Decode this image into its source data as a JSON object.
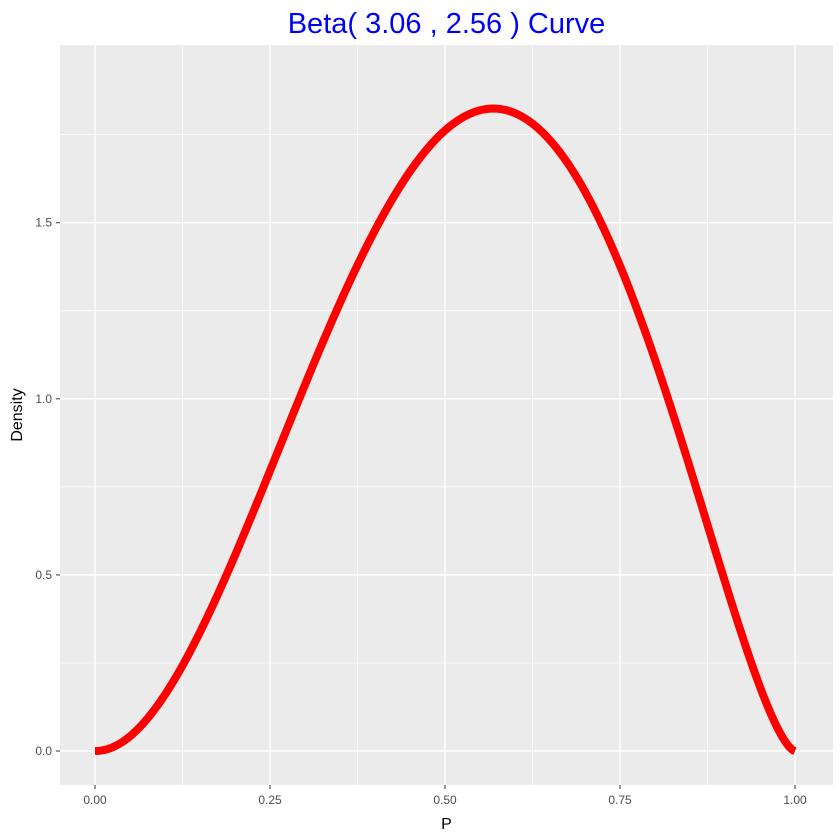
{
  "chart_data": {
    "type": "line",
    "title": "Beta( 3.06 , 2.56 ) Curve",
    "xlabel": "P",
    "ylabel": "Density",
    "distribution": "Beta",
    "alpha": 3.06,
    "beta": 2.56,
    "xlim": [
      0,
      1
    ],
    "ylim": [
      0,
      1.82
    ],
    "x_ticks": [
      {
        "value": 0.0,
        "label": "0.00"
      },
      {
        "value": 0.25,
        "label": "0.25"
      },
      {
        "value": 0.5,
        "label": "0.50"
      },
      {
        "value": 0.75,
        "label": "0.75"
      },
      {
        "value": 1.0,
        "label": "1.00"
      }
    ],
    "y_ticks": [
      {
        "value": 0.0,
        "label": "0.0"
      },
      {
        "value": 0.5,
        "label": "0.5"
      },
      {
        "value": 1.0,
        "label": "1.0"
      },
      {
        "value": 1.5,
        "label": "1.5"
      }
    ],
    "x": [
      0.0,
      0.05,
      0.1,
      0.15,
      0.2,
      0.25,
      0.3,
      0.35,
      0.4,
      0.45,
      0.5,
      0.55,
      0.5654,
      0.6,
      0.65,
      0.7,
      0.75,
      0.8,
      0.85,
      0.9,
      0.95,
      1.0
    ],
    "series": [
      {
        "values": [
          0.0,
          0.035,
          0.155,
          0.345,
          0.579,
          0.836,
          1.094,
          1.335,
          1.541,
          1.7,
          1.802,
          1.827,
          1.829,
          1.802,
          1.712,
          1.556,
          1.336,
          1.058,
          0.737,
          0.398,
          0.113,
          0.0
        ]
      }
    ],
    "colors": {
      "line": "#ff0000",
      "panel_background": "#ebebeb",
      "grid": "#ffffff",
      "title": "#0000ff"
    },
    "grid": true,
    "legend": "none"
  }
}
